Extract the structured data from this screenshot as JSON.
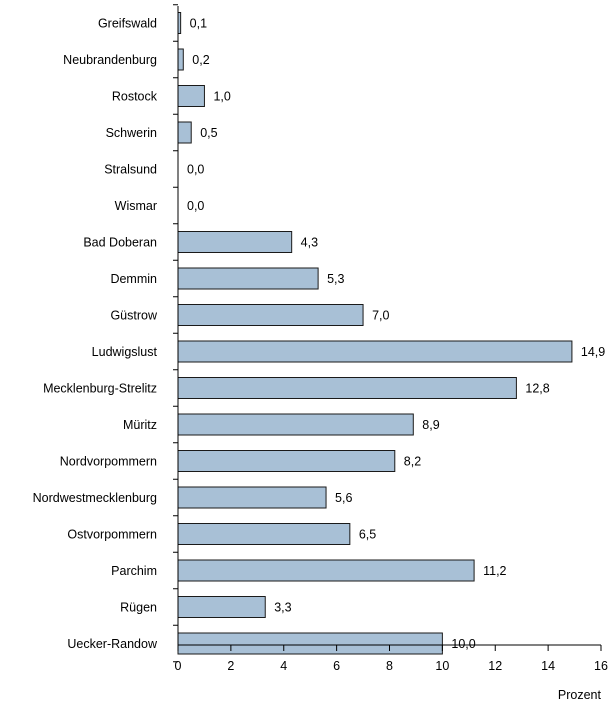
{
  "chart_data": {
    "type": "bar",
    "orientation": "horizontal",
    "categories": [
      "Greifswald",
      "Neubrandenburg",
      "Rostock",
      "Schwerin",
      "Stralsund",
      "Wismar",
      "Bad Doberan",
      "Demmin",
      "Güstrow",
      "Ludwigslust",
      "Mecklenburg-Strelitz",
      "Müritz",
      "Nordvorpommern",
      "Nordwestmecklenburg",
      "Ostvorpommern",
      "Parchim",
      "Rügen",
      "Uecker-Randow"
    ],
    "values": [
      0.1,
      0.2,
      1.0,
      0.5,
      0.0,
      0.0,
      4.3,
      5.3,
      7.0,
      14.9,
      12.8,
      8.9,
      8.2,
      5.6,
      6.5,
      11.2,
      3.3,
      10.0
    ],
    "value_labels": [
      "0,1",
      "0,2",
      "1,0",
      "0,5",
      "0,0",
      "0,0",
      "4,3",
      "5,3",
      "7,0",
      "14,9",
      "12,8",
      "8,9",
      "8,2",
      "5,6",
      "6,5",
      "11,2",
      "3,3",
      "10,0"
    ],
    "xlim": [
      0,
      16
    ],
    "xticks": [
      0,
      2,
      4,
      6,
      8,
      10,
      12,
      14,
      16
    ],
    "xlabel": "Prozent",
    "ylabel": "",
    "title": "",
    "grid": false,
    "colors": {
      "bar_fill": "#a8c0d6",
      "bar_stroke": "#1a1a1a",
      "axis": "#000000"
    }
  }
}
